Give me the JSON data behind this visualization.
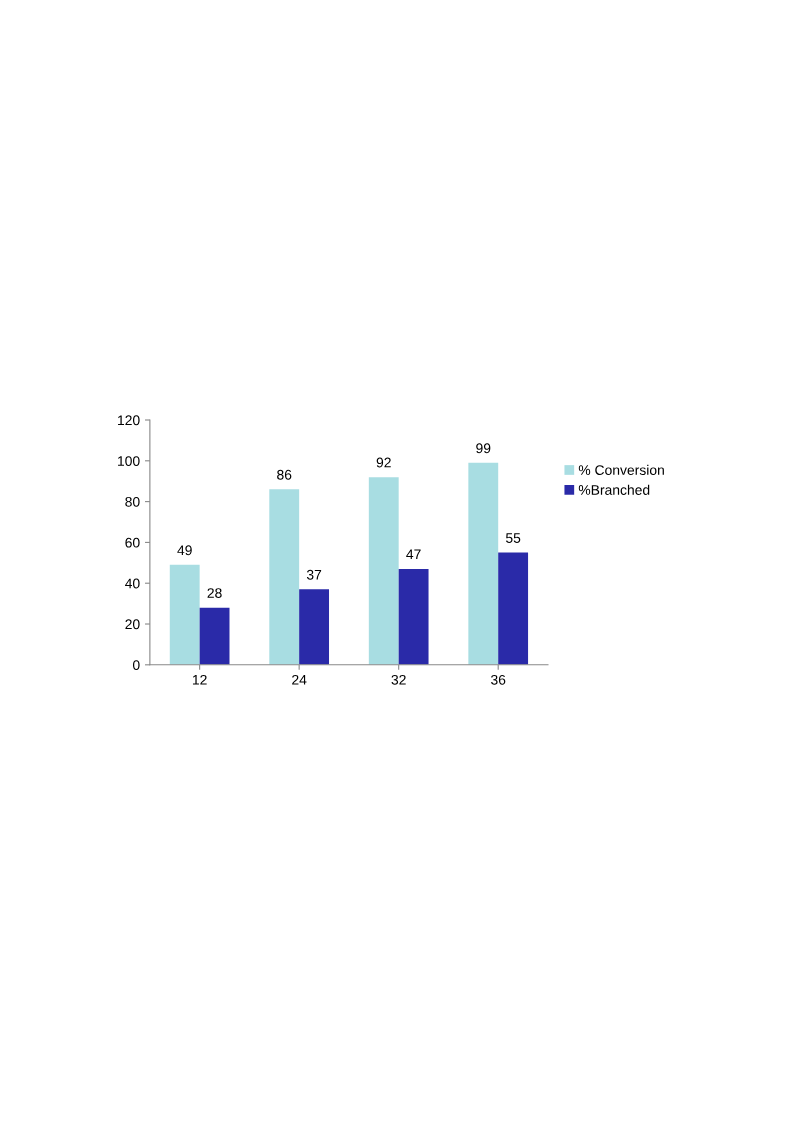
{
  "chart_data": {
    "type": "bar",
    "categories": [
      "12",
      "24",
      "32",
      "36"
    ],
    "series": [
      {
        "name": "% Conversion",
        "color": "#a8dde2",
        "values": [
          49,
          86,
          92,
          99
        ]
      },
      {
        "name": "%Branched",
        "color": "#2a2aa8",
        "values": [
          28,
          37,
          47,
          55
        ]
      }
    ],
    "ylim": [
      0,
      120
    ],
    "yticks": [
      0,
      20,
      40,
      60,
      80,
      100,
      120
    ],
    "data_labels": true,
    "legend": "right"
  }
}
